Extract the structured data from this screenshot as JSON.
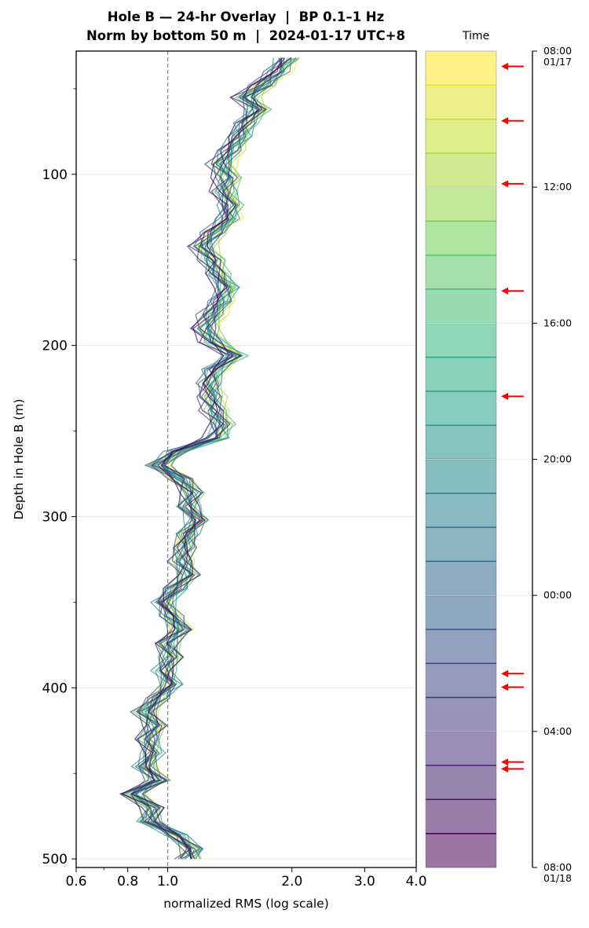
{
  "chart_data": {
    "type": "line",
    "title": [
      "Hole B — 24-hr Overlay  |  BP 0.1–1 Hz",
      "Norm by bottom 50 m  |  2024-01-17 UTC+8"
    ],
    "xlabel": "normalized RMS  (log scale)",
    "ylabel": "Depth in Hole B (m)",
    "x_scale": "log",
    "xlim": [
      0.6,
      4.0
    ],
    "ylim": [
      505,
      28
    ],
    "x_ticks": [
      "0.6",
      "0.8",
      "1.0",
      "2.0",
      "3.0",
      "4.0"
    ],
    "x_tick_values": [
      0.6,
      0.8,
      1.0,
      2.0,
      3.0,
      4.0
    ],
    "y_ticks": [
      "100",
      "200",
      "300",
      "400",
      "500"
    ],
    "y_tick_values": [
      100,
      200,
      300,
      400,
      500
    ],
    "reference_line_x": 1.0,
    "grid": true,
    "profile_depth": [
      32,
      40,
      48,
      55,
      62,
      70,
      78,
      86,
      94,
      102,
      110,
      118,
      126,
      134,
      142,
      150,
      158,
      166,
      174,
      182,
      190,
      198,
      206,
      214,
      222,
      230,
      238,
      246,
      254,
      262,
      270,
      278,
      286,
      294,
      302,
      310,
      318,
      326,
      334,
      342,
      350,
      358,
      366,
      374,
      382,
      390,
      398,
      406,
      414,
      422,
      430,
      438,
      446,
      454,
      462,
      470,
      478,
      486,
      494,
      500
    ],
    "profile_rms": [
      1.95,
      1.85,
      1.7,
      1.55,
      1.65,
      1.55,
      1.5,
      1.42,
      1.35,
      1.4,
      1.38,
      1.42,
      1.4,
      1.3,
      1.22,
      1.28,
      1.32,
      1.4,
      1.35,
      1.28,
      1.24,
      1.3,
      1.45,
      1.3,
      1.27,
      1.28,
      1.3,
      1.35,
      1.32,
      1.05,
      0.95,
      1.08,
      1.15,
      1.12,
      1.18,
      1.12,
      1.1,
      1.08,
      1.12,
      1.05,
      0.98,
      1.02,
      1.08,
      1.0,
      1.02,
      0.98,
      1.02,
      0.95,
      0.88,
      0.93,
      0.9,
      0.92,
      0.88,
      0.95,
      0.82,
      0.92,
      0.9,
      1.05,
      1.15,
      1.12
    ],
    "colorbar": {
      "label": "Time",
      "ticks": [
        "08:00\n01/17",
        "12:00",
        "16:00",
        "20:00",
        "00:00",
        "04:00",
        "08:00\n01/18"
      ],
      "tick_hours": [
        0,
        4,
        8,
        12,
        16,
        20,
        24
      ],
      "hours": 24,
      "colormap": "viridis",
      "event_marker_color": "#ff0000",
      "event_markers_hours": [
        0.45,
        2.05,
        3.9,
        7.05,
        10.15,
        18.3,
        18.7,
        20.9,
        21.1
      ]
    },
    "series_note": "24 hourly depth profiles colored by time"
  },
  "colors": {
    "grid": "#e6e6e6",
    "reference_line": "#808080",
    "arrow": "#ff0000",
    "colormap_stops": [
      "#fde725",
      "#b5de2b",
      "#6ece58",
      "#35b779",
      "#1f9e89",
      "#26828e",
      "#31688e",
      "#3e4989",
      "#482878",
      "#440154"
    ]
  }
}
